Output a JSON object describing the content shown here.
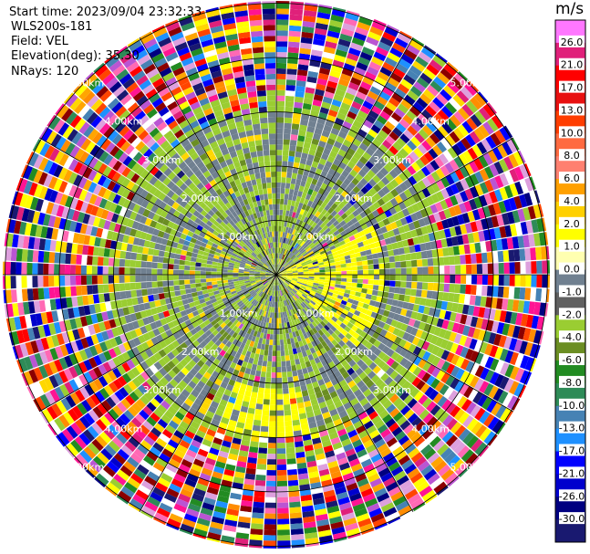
{
  "info": {
    "start_time": "Start time: 2023/09/04 23:32:33",
    "radar": "WLS200s-181",
    "field": "Field: VEL",
    "elevation": "Elevation(deg): 35.30",
    "nrays": "NRays: 120"
  },
  "colorbar": {
    "unit": "m/s",
    "ticks": [
      "26.0",
      "21.0",
      "17.0",
      "13.0",
      "10.0",
      "8.0",
      "6.0",
      "4.0",
      "2.0",
      "1.0",
      "0.0",
      "-1.0",
      "-2.0",
      "-4.0",
      "-6.0",
      "-8.0",
      "-10.0",
      "-13.0",
      "-17.0",
      "-21.0",
      "-26.0",
      "-30.0"
    ],
    "colors": [
      "#f7f",
      "#e0207a",
      "#f00",
      "#e81010",
      "#ff3d00",
      "#ff6a40",
      "#ff8070",
      "#ffa000",
      "#ffd000",
      "#ffff00",
      "#ffffb0",
      "#708090",
      "#606060",
      "#9acd32",
      "#6b8e23",
      "#228b22",
      "#2e8b57",
      "#4682b4",
      "#1e90ff",
      "#0000ff",
      "#0000cd",
      "#000080",
      "#191970"
    ]
  },
  "chart_data": {
    "type": "ppi",
    "field": "VEL",
    "nrays": 120,
    "range_rings_km": [
      1,
      2,
      3,
      4,
      5
    ],
    "ring_labels": [
      "1.00km",
      "2.00km",
      "3.00km",
      "4.00km",
      "5.00km"
    ],
    "azimuth_lines_deg": [
      0,
      30,
      60,
      90,
      120,
      150,
      180,
      210,
      240,
      270,
      300,
      330
    ],
    "vmin": -30,
    "vmax": 30
  }
}
